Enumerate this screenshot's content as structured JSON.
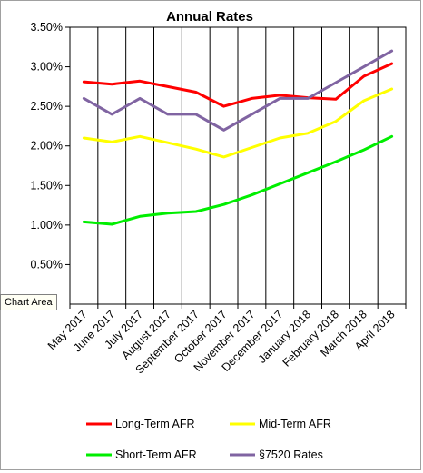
{
  "tooltip": {
    "label": "Chart Area"
  },
  "chart_data": {
    "type": "line",
    "title": "Annual Rates",
    "xlabel": "",
    "ylabel": "",
    "ylim": [
      0,
      3.5
    ],
    "yticks": [
      "0.50%",
      "1.00%",
      "1.50%",
      "2.00%",
      "2.50%",
      "3.00%",
      "3.50%"
    ],
    "y_tick_values": [
      0.5,
      1.0,
      1.5,
      2.0,
      2.5,
      3.0,
      3.5
    ],
    "grid": "vertical",
    "legend_position": "bottom",
    "categories": [
      "May 2017",
      "June 2017",
      "July 2017",
      "August 2017",
      "September 2017",
      "October 2017",
      "November 2017",
      "December 2017",
      "January 2018",
      "February 2018",
      "March 2018",
      "April 2018"
    ],
    "series": [
      {
        "name": "Long-Term AFR",
        "color": "#ff0000",
        "values": [
          2.81,
          2.78,
          2.82,
          2.75,
          2.68,
          2.5,
          2.6,
          2.64,
          2.61,
          2.59,
          2.88,
          3.04
        ]
      },
      {
        "name": "Mid-Term AFR",
        "color": "#ffff00",
        "values": [
          2.1,
          2.05,
          2.12,
          2.04,
          1.96,
          1.86,
          1.98,
          2.1,
          2.16,
          2.31,
          2.57,
          2.72
        ]
      },
      {
        "name": "Short-Term AFR",
        "color": "#00ee00",
        "values": [
          1.04,
          1.01,
          1.11,
          1.15,
          1.17,
          1.26,
          1.38,
          1.52,
          1.66,
          1.8,
          1.95,
          2.12
        ]
      },
      {
        "name": "§7520 Rates",
        "color": "#8064a2",
        "values": [
          2.6,
          2.4,
          2.6,
          2.4,
          2.4,
          2.2,
          2.4,
          2.6,
          2.6,
          2.8,
          3.0,
          3.2
        ]
      }
    ]
  }
}
